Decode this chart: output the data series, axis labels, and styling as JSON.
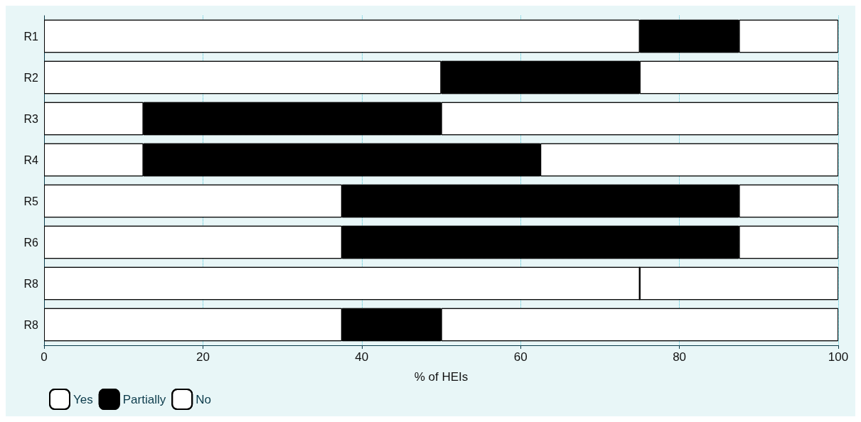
{
  "chart_data": {
    "type": "bar",
    "orientation": "horizontal",
    "stacked": true,
    "categories": [
      "R1",
      "R2",
      "R3",
      "R4",
      "R5",
      "R6",
      "R8",
      "R8"
    ],
    "series": [
      {
        "name": "Yes",
        "color": "#ffffff",
        "values": [
          75,
          50,
          12.5,
          12.5,
          37.5,
          37.5,
          75,
          37.5
        ]
      },
      {
        "name": "Partially",
        "color": "#000000",
        "values": [
          12.5,
          25,
          37.5,
          50,
          50,
          50,
          0,
          12.5
        ]
      },
      {
        "name": "No",
        "color": "#ffffff",
        "values": [
          12.5,
          25,
          50,
          37.5,
          12.5,
          12.5,
          25,
          50
        ]
      }
    ],
    "xlabel": "% of HEIs",
    "xlim": [
      0,
      100
    ],
    "xticks": [
      0,
      20,
      40,
      60,
      80,
      100
    ],
    "grid": "x",
    "legend": "bottom left"
  }
}
